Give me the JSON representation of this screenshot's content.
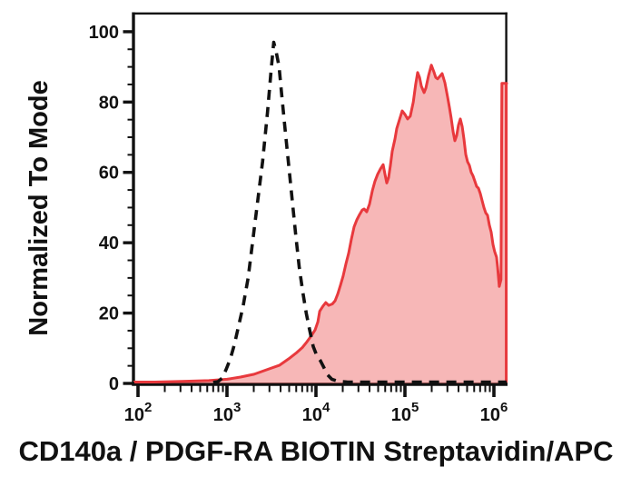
{
  "chart_data": {
    "type": "area",
    "title": "",
    "xlabel": "CD140a / PDGF-RA BIOTIN Streptavidin/APC",
    "ylabel": "Normalized To Mode",
    "xscale": "log",
    "xlim": [
      89,
      1390000
    ],
    "ylim": [
      0,
      100
    ],
    "grid": false,
    "legend_position": "none",
    "colors": {
      "axis": "#111111",
      "control_line": "#111111",
      "sample_line": "#e8393d",
      "sample_fill": "rgba(234,59,60,0.37)"
    },
    "y_axis": {
      "major_ticks": [
        0,
        20,
        40,
        60,
        80,
        100
      ],
      "major_labels": [
        "0",
        "20",
        "40",
        "60",
        "80",
        "100"
      ],
      "minor_step": 5
    },
    "x_axis": {
      "base_label": "10",
      "decade_exponents": [
        2,
        3,
        4,
        5,
        6
      ],
      "decade_exponent_labels": [
        "2",
        "3",
        "4",
        "5",
        "6"
      ],
      "minor_ticks_per_decade": [
        2,
        3,
        4,
        5,
        6,
        7,
        8,
        9
      ]
    },
    "series": [
      {
        "name": "control-dashed",
        "style": "dashed",
        "color": "#111111",
        "fill": "none",
        "peak": {
          "x": 3350,
          "y": 97
        },
        "points": [
          [
            700,
            0.3
          ],
          [
            790,
            0.5
          ],
          [
            880,
            1.5
          ],
          [
            980,
            4
          ],
          [
            1090,
            7
          ],
          [
            1210,
            11
          ],
          [
            1340,
            16
          ],
          [
            1520,
            22
          ],
          [
            1730,
            30
          ],
          [
            1960,
            41
          ],
          [
            2220,
            52
          ],
          [
            2510,
            63
          ],
          [
            2850,
            77
          ],
          [
            3130,
            89
          ],
          [
            3350,
            97
          ],
          [
            3590,
            94
          ],
          [
            3850,
            90
          ],
          [
            4120,
            82
          ],
          [
            4510,
            72
          ],
          [
            4940,
            62
          ],
          [
            5410,
            52
          ],
          [
            5930,
            42
          ],
          [
            6490,
            33
          ],
          [
            7110,
            26
          ],
          [
            7780,
            20
          ],
          [
            8520,
            15
          ],
          [
            9330,
            10.5
          ],
          [
            10200,
            8
          ],
          [
            11200,
            6.5
          ],
          [
            12300,
            4.5
          ],
          [
            13400,
            2.5
          ],
          [
            15100,
            1.2
          ],
          [
            17800,
            0.6
          ],
          [
            22600,
            0.4
          ],
          [
            1390000,
            0.4
          ]
        ]
      },
      {
        "name": "stained-sample",
        "style": "solid-filled",
        "color": "#e8393d",
        "fill": "rgba(234,59,60,0.37)",
        "peak": {
          "x": 198000,
          "y": 90.5
        },
        "points": [
          [
            89,
            0.4
          ],
          [
            153,
            0.4
          ],
          [
            309,
            0.6
          ],
          [
            625,
            0.8
          ],
          [
            1000,
            1.2
          ],
          [
            1420,
            1.8
          ],
          [
            2020,
            2.6
          ],
          [
            2880,
            4
          ],
          [
            3910,
            5.2
          ],
          [
            4940,
            7
          ],
          [
            5970,
            8.6
          ],
          [
            7030,
            10.2
          ],
          [
            7910,
            11.8
          ],
          [
            8890,
            13.6
          ],
          [
            9770,
            15.2
          ],
          [
            10500,
            17.5
          ],
          [
            11000,
            20.5
          ],
          [
            12000,
            22
          ],
          [
            12900,
            23
          ],
          [
            13900,
            22.2
          ],
          [
            15300,
            22.6
          ],
          [
            16400,
            23.5
          ],
          [
            17600,
            25.5
          ],
          [
            18900,
            28
          ],
          [
            20200,
            30.5
          ],
          [
            21700,
            34
          ],
          [
            23300,
            37
          ],
          [
            25000,
            41
          ],
          [
            26800,
            44.5
          ],
          [
            28800,
            46.5
          ],
          [
            30900,
            48
          ],
          [
            33100,
            49.3
          ],
          [
            34800,
            49.6
          ],
          [
            37200,
            48.8
          ],
          [
            40000,
            51
          ],
          [
            43000,
            54.8
          ],
          [
            46000,
            57.5
          ],
          [
            49400,
            59.5
          ],
          [
            53000,
            61
          ],
          [
            56900,
            62.2
          ],
          [
            59700,
            59.5
          ],
          [
            62500,
            57
          ],
          [
            65500,
            58.5
          ],
          [
            68700,
            62
          ],
          [
            71900,
            66
          ],
          [
            77300,
            69.5
          ],
          [
            80900,
            72.5
          ],
          [
            86900,
            75
          ],
          [
            93100,
            77.5
          ],
          [
            100000,
            76.5
          ],
          [
            107000,
            75.2
          ],
          [
            115000,
            76
          ],
          [
            124000,
            80
          ],
          [
            132000,
            85
          ],
          [
            139000,
            88.4
          ],
          [
            146000,
            87
          ],
          [
            153000,
            84.5
          ],
          [
            164000,
            82.7
          ],
          [
            172000,
            84
          ],
          [
            184000,
            87.5
          ],
          [
            198000,
            90.5
          ],
          [
            212000,
            88.5
          ],
          [
            222000,
            87
          ],
          [
            233000,
            86.6
          ],
          [
            250000,
            87.5
          ],
          [
            262000,
            88.1
          ],
          [
            281000,
            85.5
          ],
          [
            302000,
            81.4
          ],
          [
            316000,
            78.5
          ],
          [
            331000,
            75.5
          ],
          [
            348000,
            71.5
          ],
          [
            364000,
            69
          ],
          [
            382000,
            70.5
          ],
          [
            400000,
            73.5
          ],
          [
            419000,
            75.2
          ],
          [
            440000,
            73
          ],
          [
            460000,
            69.5
          ],
          [
            483000,
            65.1
          ],
          [
            506000,
            63
          ],
          [
            530000,
            62
          ],
          [
            556000,
            60
          ],
          [
            582000,
            59
          ],
          [
            611000,
            57.5
          ],
          [
            640000,
            56
          ],
          [
            671000,
            55.5
          ],
          [
            703000,
            54
          ],
          [
            736000,
            52
          ],
          [
            773000,
            50
          ],
          [
            809000,
            48.5
          ],
          [
            849000,
            47.8
          ],
          [
            889000,
            45
          ],
          [
            931000,
            43
          ],
          [
            977000,
            39.5
          ],
          [
            1020000,
            37.5
          ],
          [
            1070000,
            35.9
          ],
          [
            1100000,
            33
          ],
          [
            1150000,
            27.6
          ],
          [
            1200000,
            29.5
          ],
          [
            1230000,
            85.3
          ],
          [
            1390000,
            85.3
          ]
        ]
      }
    ]
  }
}
